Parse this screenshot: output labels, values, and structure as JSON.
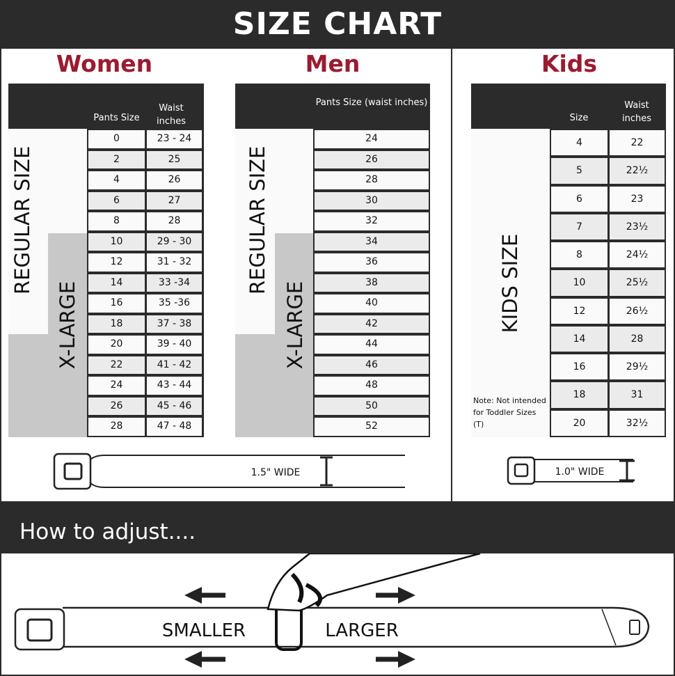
{
  "title": "SIZE CHART",
  "women": {
    "title": "Women",
    "col1": "Pants Size",
    "col2": "Waist inches",
    "regular": "REGULAR SIZE",
    "xlarge": "X-LARGE",
    "rows": [
      [
        "0",
        "23 - 24"
      ],
      [
        "2",
        "25"
      ],
      [
        "4",
        "26"
      ],
      [
        "6",
        "27"
      ],
      [
        "8",
        "28"
      ],
      [
        "10",
        "29 - 30"
      ],
      [
        "12",
        "31 - 32"
      ],
      [
        "14",
        "33 -34"
      ],
      [
        "16",
        "35 -36"
      ],
      [
        "18",
        "37 - 38"
      ],
      [
        "20",
        "39 - 40"
      ],
      [
        "22",
        "41 - 42"
      ],
      [
        "24",
        "43 - 44"
      ],
      [
        "26",
        "45 - 46"
      ],
      [
        "28",
        "47 - 48"
      ]
    ]
  },
  "men": {
    "title": "Men",
    "col1": "Pants Size (waist inches)",
    "regular": "REGULAR SIZE",
    "xlarge": "X-LARGE",
    "rows": [
      "24",
      "26",
      "28",
      "30",
      "32",
      "34",
      "36",
      "38",
      "40",
      "42",
      "44",
      "46",
      "48",
      "50",
      "52"
    ]
  },
  "kids": {
    "title": "Kids",
    "col1": "Size",
    "col2": "Waist inches",
    "label": "KIDS SIZE",
    "note": "Note: Not intended for Toddler Sizes (T)",
    "rows": [
      [
        "4",
        "22"
      ],
      [
        "5",
        "22½"
      ],
      [
        "6",
        "23"
      ],
      [
        "7",
        "23½"
      ],
      [
        "8",
        "24½"
      ],
      [
        "10",
        "25½"
      ],
      [
        "12",
        "26½"
      ],
      [
        "14",
        "28"
      ],
      [
        "16",
        "29½"
      ],
      [
        "18",
        "31"
      ],
      [
        "20",
        "32½"
      ]
    ]
  },
  "belt_adult_width": "1.5\" WIDE",
  "belt_kids_width": "1.0\" WIDE",
  "adjust": {
    "title": "How to adjust....",
    "smaller": "SMALLER",
    "larger": "LARGER"
  },
  "colors": {
    "accent": "#9b1b30",
    "dark": "#2b2b2b",
    "xlarge_fill": "#c8c8c8"
  }
}
